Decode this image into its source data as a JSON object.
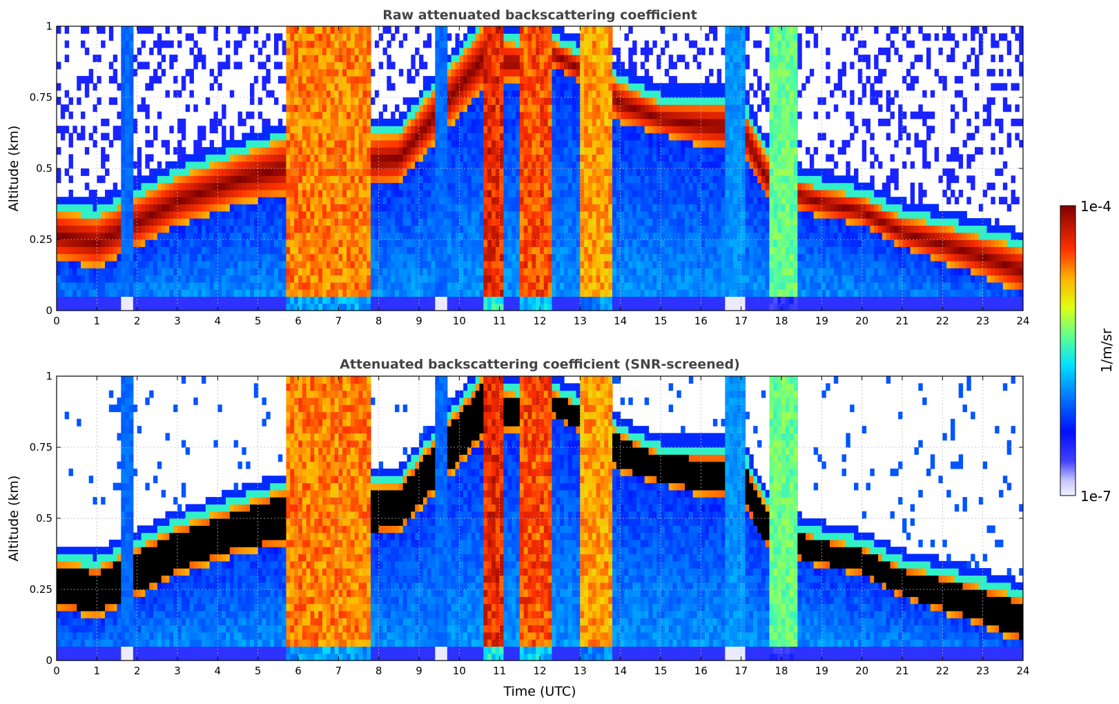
{
  "chart_data": [
    {
      "type": "heatmap",
      "title": "Raw attenuated backscattering coefficient",
      "xlabel": "",
      "ylabel": "Altitude (km)",
      "xlim": [
        0,
        24
      ],
      "ylim": [
        0,
        1
      ],
      "x_ticks": [
        "0",
        "1",
        "2",
        "3",
        "4",
        "5",
        "6",
        "7",
        "8",
        "9",
        "10",
        "11",
        "12",
        "13",
        "14",
        "15",
        "16",
        "17",
        "18",
        "19",
        "20",
        "21",
        "22",
        "23",
        "24"
      ],
      "y_ticks": [
        "0",
        "0.25",
        "0.5",
        "0.75",
        "1"
      ],
      "grid": true,
      "screened": false,
      "cloud_layer": {
        "time": [
          0,
          1,
          2,
          3,
          4,
          4.6,
          5.6,
          8.5,
          10.6,
          11,
          12,
          12.3,
          13,
          14,
          15,
          16,
          17,
          17.6,
          18,
          19,
          20,
          21,
          22,
          23,
          24
        ],
        "base_km": [
          0.18,
          0.15,
          0.22,
          0.3,
          0.35,
          0.38,
          0.4,
          0.45,
          0.78,
          0.8,
          0.82,
          0.86,
          0.8,
          0.66,
          0.62,
          0.58,
          0.56,
          0.4,
          0.37,
          0.33,
          0.3,
          0.22,
          0.17,
          0.12,
          0.06
        ],
        "top_km": [
          0.35,
          0.33,
          0.4,
          0.47,
          0.52,
          0.55,
          0.6,
          0.62,
          1.0,
          0.95,
          0.92,
          0.95,
          0.9,
          0.8,
          0.73,
          0.73,
          0.73,
          0.55,
          0.48,
          0.43,
          0.4,
          0.33,
          0.3,
          0.26,
          0.22
        ]
      },
      "precip_bands": [
        {
          "start": 5.7,
          "end": 7.8,
          "level": 0.85
        },
        {
          "start": 10.6,
          "end": 11.1,
          "level": 0.95
        },
        {
          "start": 11.5,
          "end": 12.3,
          "level": 0.9
        },
        {
          "start": 13.0,
          "end": 13.8,
          "level": 0.82
        },
        {
          "start": 17.7,
          "end": 18.4,
          "level": 0.6
        },
        {
          "start": 16.6,
          "end": 17.1,
          "level": 0.4
        },
        {
          "start": 9.4,
          "end": 9.7,
          "level": 0.35
        },
        {
          "start": 1.6,
          "end": 1.9,
          "level": 0.35
        }
      ]
    },
    {
      "type": "heatmap",
      "title": "Attenuated backscattering coefficient (SNR-screened)",
      "xlabel": "Time (UTC)",
      "ylabel": "Altitude (km)",
      "xlim": [
        0,
        24
      ],
      "ylim": [
        0,
        1
      ],
      "x_ticks": [
        "0",
        "1",
        "2",
        "3",
        "4",
        "5",
        "6",
        "7",
        "8",
        "9",
        "10",
        "11",
        "12",
        "13",
        "14",
        "15",
        "16",
        "17",
        "18",
        "19",
        "20",
        "21",
        "22",
        "23",
        "24"
      ],
      "y_ticks": [
        "0",
        "0.25",
        "0.5",
        "0.75",
        "1"
      ],
      "grid": true,
      "screened": true,
      "saturated_color": "#000000"
    }
  ],
  "colorbar": {
    "label": "1/m/sr",
    "max_label": "1e-4",
    "min_label": "1e-7",
    "colormap": "jet"
  }
}
